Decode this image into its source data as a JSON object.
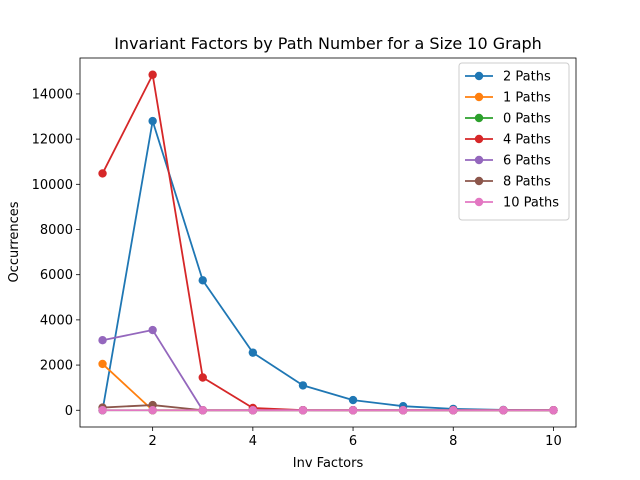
{
  "chart_data": {
    "type": "line",
    "title": "Invariant Factors by Path Number for a Size 10 Graph",
    "xlabel": "Inv Factors",
    "ylabel": "Occurrences",
    "xlim": [
      0.55,
      10.45
    ],
    "ylim": [
      -741,
      15590
    ],
    "x_ticks": [
      2,
      4,
      6,
      8,
      10
    ],
    "y_ticks": [
      0,
      2000,
      4000,
      6000,
      8000,
      10000,
      12000,
      14000
    ],
    "x": [
      1,
      2,
      3,
      4,
      5,
      6,
      7,
      8,
      9,
      10
    ],
    "legend_position": "top-right",
    "grid": false,
    "series": [
      {
        "name": "2 Paths",
        "color": "#1f77b4",
        "values": [
          0,
          12800,
          5750,
          2550,
          1100,
          450,
          180,
          60,
          15,
          3
        ]
      },
      {
        "name": "1 Paths",
        "color": "#ff7f0e",
        "values": [
          2050,
          0,
          0,
          0,
          0,
          0,
          0,
          0,
          0,
          0
        ]
      },
      {
        "name": "0 Paths",
        "color": "#2ca02c",
        "values": [
          0,
          0,
          0,
          0,
          0,
          0,
          0,
          0,
          0,
          0
        ]
      },
      {
        "name": "4 Paths",
        "color": "#d62728",
        "values": [
          10480,
          14850,
          1450,
          100,
          5,
          0,
          0,
          0,
          0,
          0
        ]
      },
      {
        "name": "6 Paths",
        "color": "#9467bd",
        "values": [
          3100,
          3550,
          0,
          0,
          0,
          0,
          0,
          0,
          0,
          0
        ]
      },
      {
        "name": "8 Paths",
        "color": "#8c564b",
        "values": [
          120,
          230,
          0,
          0,
          0,
          0,
          0,
          0,
          0,
          0
        ]
      },
      {
        "name": "10 Paths",
        "color": "#e377c2",
        "values": [
          0,
          0,
          0,
          0,
          0,
          0,
          0,
          0,
          0,
          0
        ]
      }
    ]
  }
}
